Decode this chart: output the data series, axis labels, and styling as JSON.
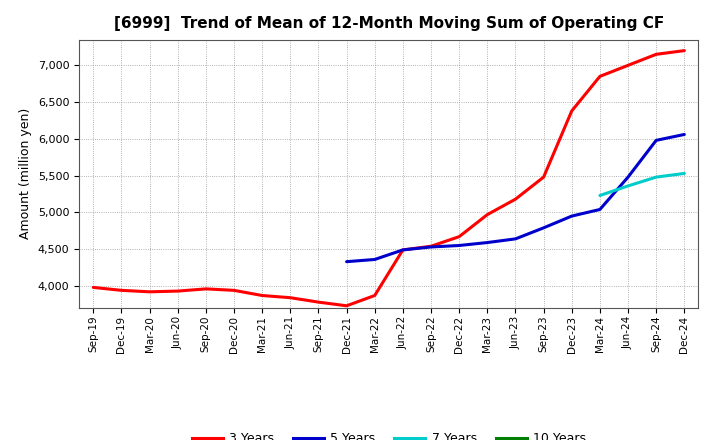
{
  "title": "[6999]  Trend of Mean of 12-Month Moving Sum of Operating CF",
  "ylabel": "Amount (million yen)",
  "background_color": "#ffffff",
  "grid_color": "#aaaaaa",
  "x_labels": [
    "Sep-19",
    "Dec-19",
    "Mar-20",
    "Jun-20",
    "Sep-20",
    "Dec-20",
    "Mar-21",
    "Jun-21",
    "Sep-21",
    "Dec-21",
    "Mar-22",
    "Jun-22",
    "Sep-22",
    "Dec-22",
    "Mar-23",
    "Jun-23",
    "Sep-23",
    "Dec-23",
    "Mar-24",
    "Jun-24",
    "Sep-24",
    "Dec-24"
  ],
  "ylim": [
    3700,
    7350
  ],
  "yticks": [
    4000,
    4500,
    5000,
    5500,
    6000,
    6500,
    7000
  ],
  "series": {
    "3 Years": {
      "color": "#ff0000",
      "data_x": [
        0,
        1,
        2,
        3,
        4,
        5,
        6,
        7,
        8,
        9,
        10,
        11,
        12,
        13,
        14,
        15,
        16,
        17,
        18,
        19,
        20,
        21
      ],
      "data_y": [
        3980,
        3940,
        3920,
        3930,
        3960,
        3940,
        3870,
        3840,
        3780,
        3730,
        3870,
        4490,
        4540,
        4670,
        4970,
        5180,
        5480,
        6380,
        6850,
        7000,
        7150,
        7200
      ]
    },
    "5 Years": {
      "color": "#0000cc",
      "data_x": [
        9,
        10,
        11,
        12,
        13,
        14,
        15,
        16,
        17,
        18,
        19,
        20,
        21
      ],
      "data_y": [
        4330,
        4360,
        4490,
        4530,
        4550,
        4590,
        4640,
        4790,
        4950,
        5040,
        5480,
        5980,
        6060
      ]
    },
    "7 Years": {
      "color": "#00cccc",
      "data_x": [
        18,
        19,
        20,
        21
      ],
      "data_y": [
        5230,
        5360,
        5480,
        5530
      ]
    },
    "10 Years": {
      "color": "#008000",
      "data_x": [],
      "data_y": []
    }
  },
  "legend_labels": [
    "3 Years",
    "5 Years",
    "7 Years",
    "10 Years"
  ],
  "legend_colors": [
    "#ff0000",
    "#0000cc",
    "#00cccc",
    "#008000"
  ]
}
